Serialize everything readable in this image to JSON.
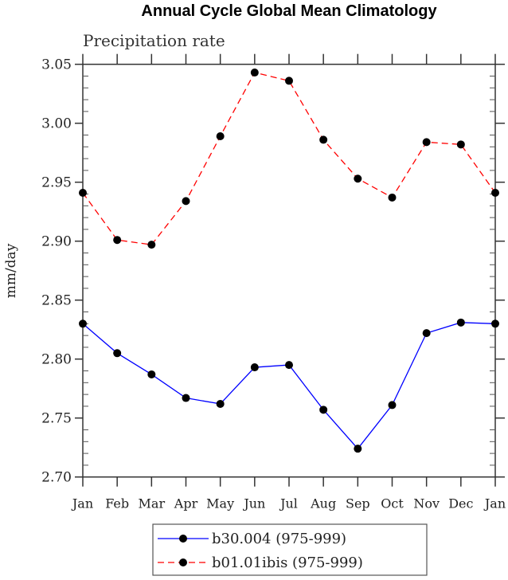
{
  "chart_data": {
    "type": "line",
    "title": "Annual Cycle Global Mean Climatology",
    "subtitle": "Precipitation rate",
    "ylabel": "mm/day",
    "xlabel": "",
    "categories": [
      "Jan",
      "Feb",
      "Mar",
      "Apr",
      "May",
      "Jun",
      "Jul",
      "Aug",
      "Sep",
      "Oct",
      "Nov",
      "Dec",
      "Jan"
    ],
    "ylim": [
      2.7,
      3.05
    ],
    "yticks": [
      "2.70",
      "2.75",
      "2.80",
      "2.85",
      "2.90",
      "2.95",
      "3.00",
      "3.05"
    ],
    "grid": false,
    "legend_position": "bottom",
    "series": [
      {
        "name": "b30.004 (975-999)",
        "color": "#0000ff",
        "dash": "solid",
        "values": [
          2.83,
          2.805,
          2.787,
          2.767,
          2.762,
          2.793,
          2.795,
          2.757,
          2.724,
          2.761,
          2.822,
          2.831,
          2.83
        ]
      },
      {
        "name": "b01.01ibis (975-999)",
        "color": "#ff0000",
        "dash": "dashed",
        "values": [
          2.941,
          2.901,
          2.897,
          2.934,
          2.989,
          3.043,
          3.036,
          2.986,
          2.953,
          2.937,
          2.984,
          2.982,
          2.941
        ]
      }
    ]
  }
}
